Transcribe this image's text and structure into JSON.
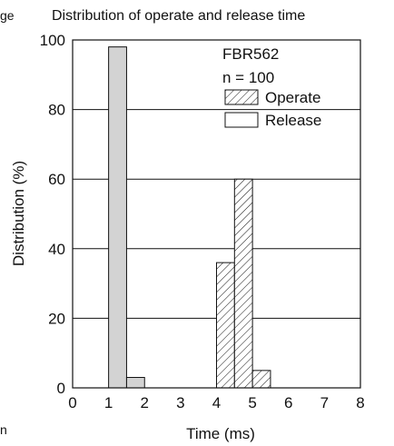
{
  "edge_texts": {
    "left_fragment": "ge",
    "bottom_fragment": "n"
  },
  "chart_data": {
    "type": "bar",
    "title": "Distribution of operate and release time",
    "xlabel": "Time (ms)",
    "ylabel": "Distribution (%)",
    "xlim": [
      0,
      8
    ],
    "ylim": [
      0,
      100
    ],
    "x_ticks": [
      "0",
      "1",
      "2",
      "3",
      "4",
      "5",
      "6",
      "7",
      "8"
    ],
    "y_ticks": [
      "0",
      "20",
      "40",
      "60",
      "80",
      "100"
    ],
    "grid": "horizontal",
    "legend_placement": "top-right",
    "annotations": [
      "FBR562",
      "n = 100"
    ],
    "series": [
      {
        "name": "Operate",
        "pattern": "hatched",
        "bars": [
          {
            "x0": 4.0,
            "x1": 4.5,
            "value": 36
          },
          {
            "x0": 4.5,
            "x1": 5.0,
            "value": 60
          },
          {
            "x0": 5.0,
            "x1": 5.5,
            "value": 5
          }
        ]
      },
      {
        "name": "Release",
        "pattern": "solid",
        "bars": [
          {
            "x0": 1.0,
            "x1": 1.5,
            "value": 98
          },
          {
            "x0": 1.5,
            "x1": 2.0,
            "value": 3
          }
        ]
      }
    ],
    "colors": {
      "release_fill": "#d3d3d3",
      "legend_release_fill": "#ffffff",
      "operate_fill": "#ffffff",
      "line": "#111111"
    }
  }
}
